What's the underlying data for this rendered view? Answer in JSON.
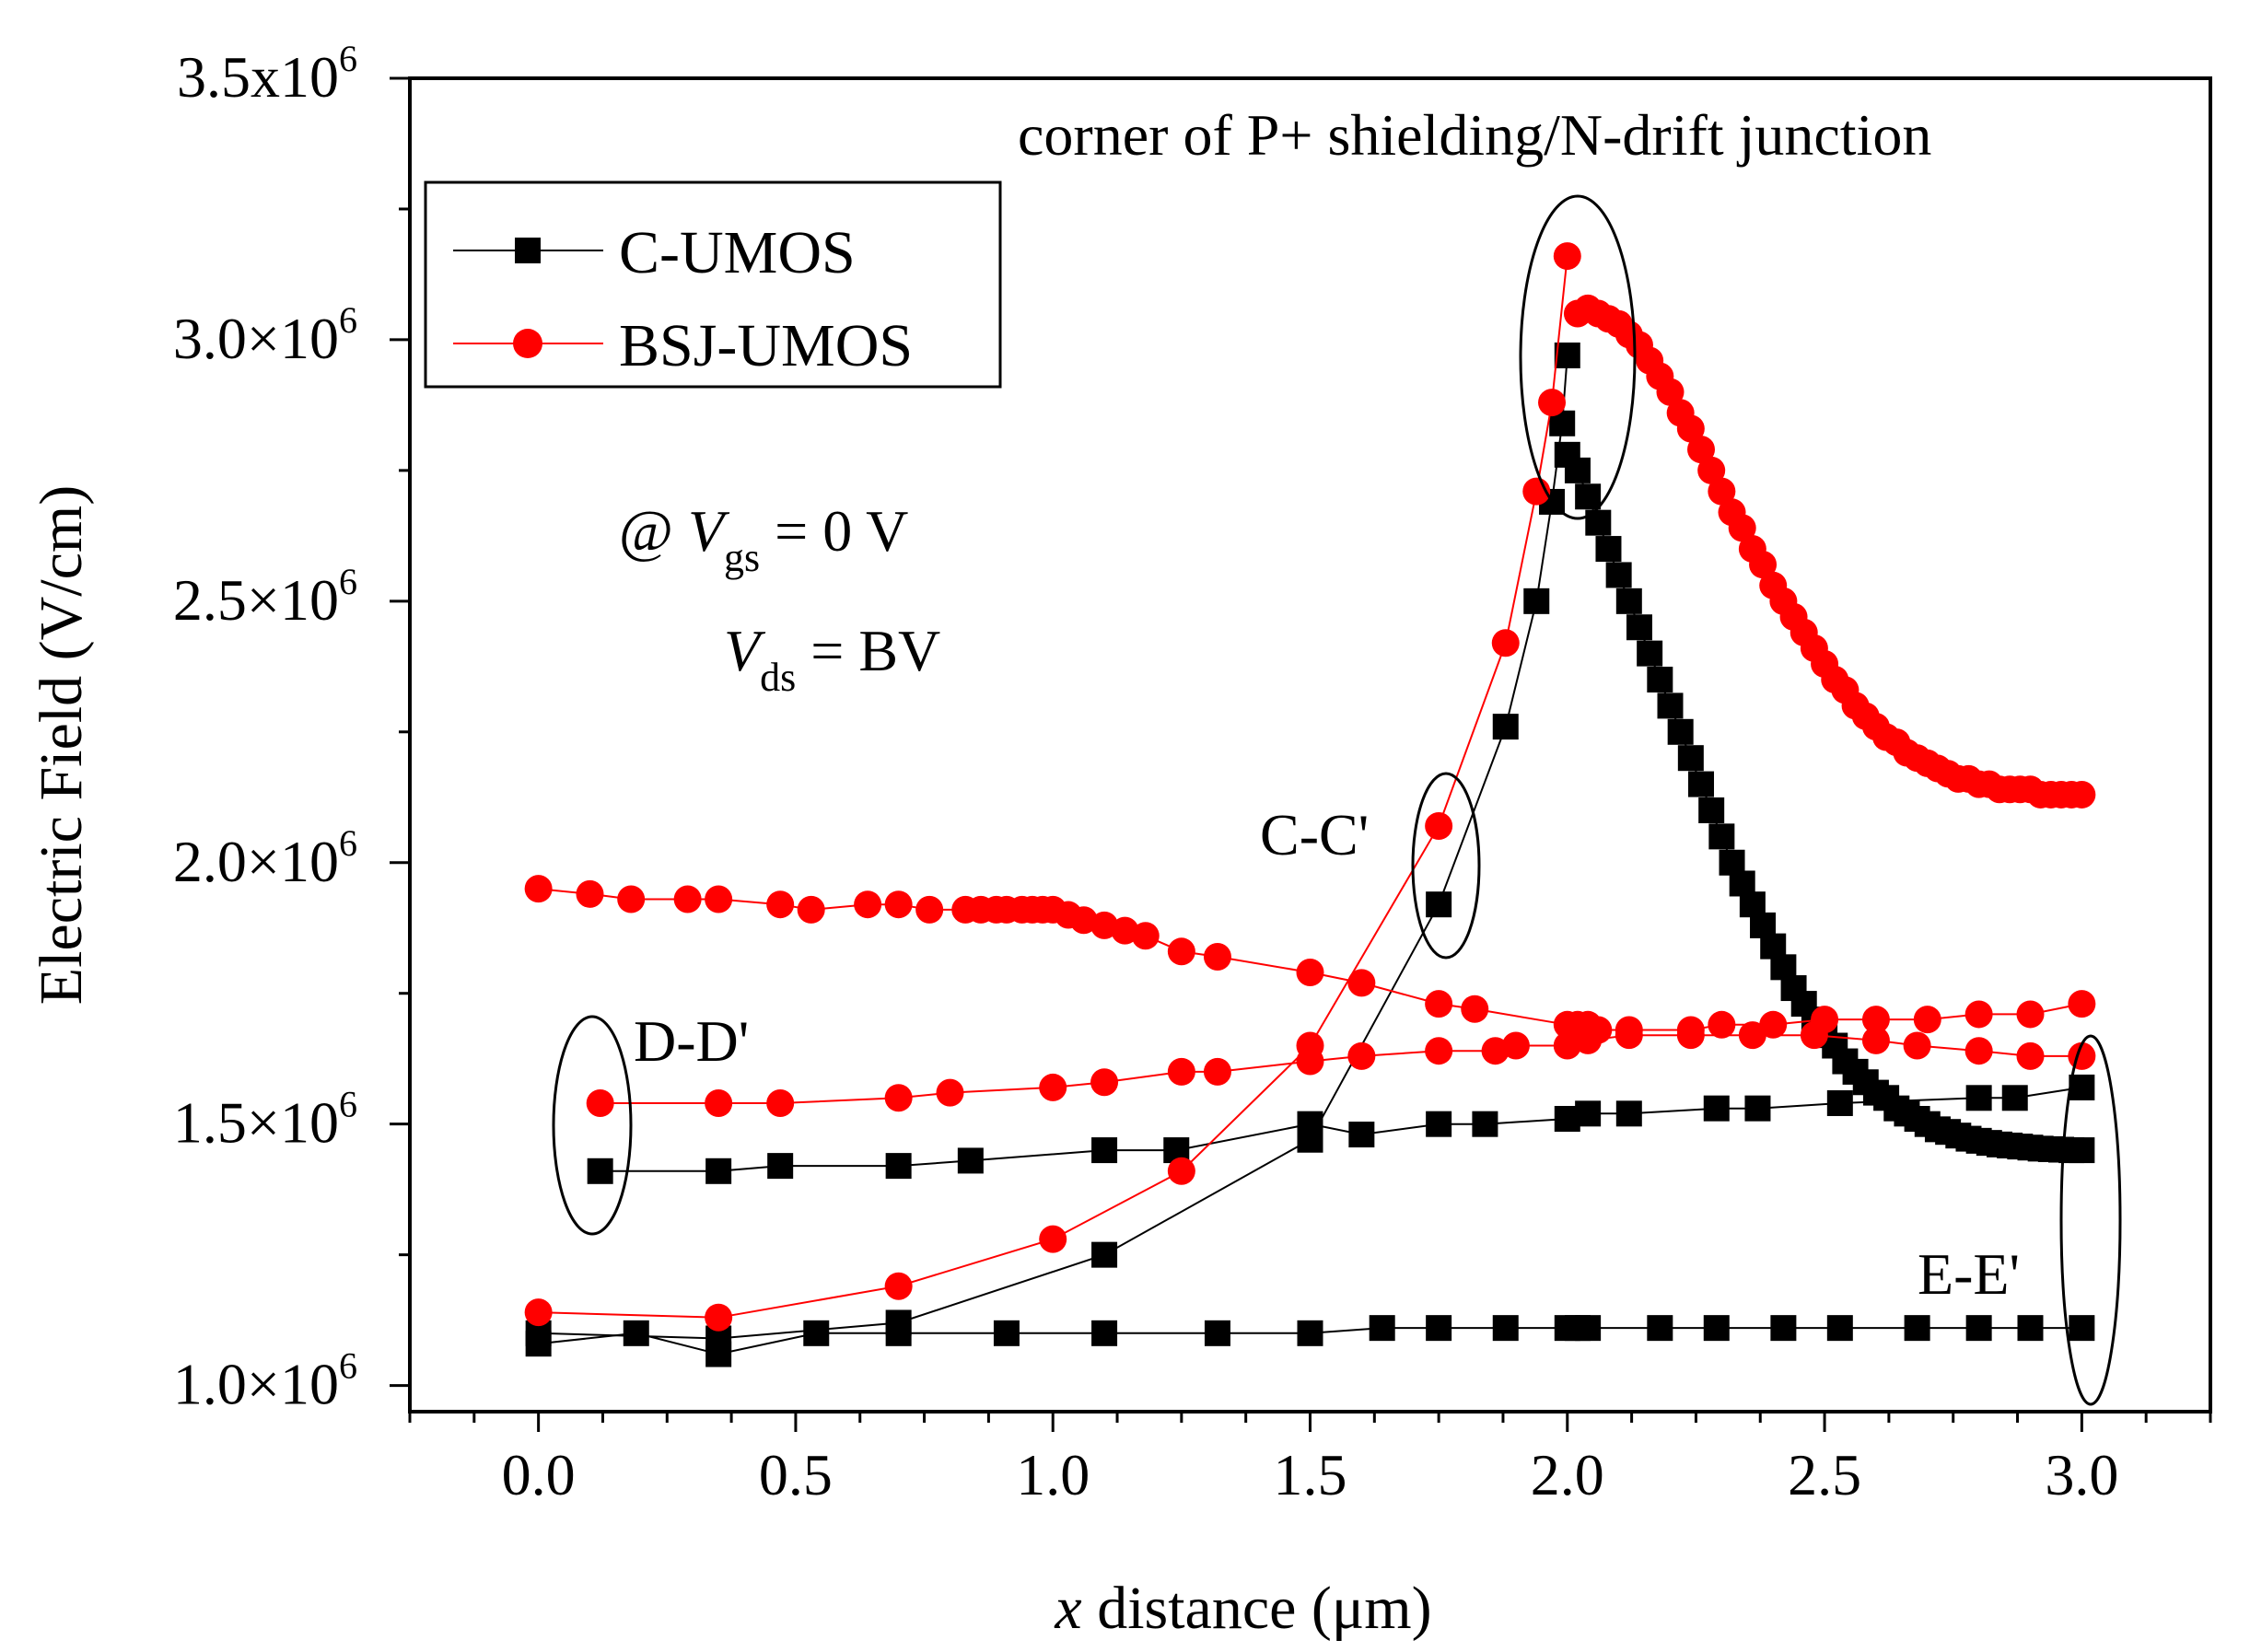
{
  "chart_data": {
    "type": "line",
    "title": "",
    "xlabel_italic": "x",
    "xlabel_rest": " distance (μm)",
    "ylabel": "Electric Field (V/cm)",
    "xlim": [
      -0.25,
      3.25
    ],
    "ylim": [
      950000,
      3500000
    ],
    "x_ticks": [
      {
        "value": 0.0,
        "label": "0.0"
      },
      {
        "value": 0.5,
        "label": "0.5"
      },
      {
        "value": 1.0,
        "label": "1.0"
      },
      {
        "value": 1.5,
        "label": "1.5"
      },
      {
        "value": 2.0,
        "label": "2.0"
      },
      {
        "value": 2.5,
        "label": "2.5"
      },
      {
        "value": 3.0,
        "label": "3.0"
      }
    ],
    "y_ticks": [
      {
        "value": 1000000,
        "mant": "1.0",
        "sep": "×10",
        "exp": "6"
      },
      {
        "value": 1500000,
        "mant": "1.5",
        "sep": "×10",
        "exp": "6"
      },
      {
        "value": 2000000,
        "mant": "2.0",
        "sep": "×10",
        "exp": "6"
      },
      {
        "value": 2500000,
        "mant": "2.5",
        "sep": "×10",
        "exp": "6"
      },
      {
        "value": 3000000,
        "mant": "3.0",
        "sep": "×10",
        "exp": "6"
      },
      {
        "value": 3500000,
        "mant": "3.5",
        "sep": "x10",
        "exp": "6"
      }
    ],
    "legend": {
      "position": "top-left",
      "entries": [
        {
          "name": "C-UMOS",
          "color": "#000000",
          "marker": "square"
        },
        {
          "name": "BSJ-UMOS",
          "color": "#ff0000",
          "marker": "circle"
        }
      ]
    },
    "series": [
      {
        "name": "C-UMOS / C-C'",
        "color": "#000000",
        "marker": "square",
        "x": [
          0.0,
          0.35,
          0.7,
          1.1,
          1.5,
          1.75,
          1.88,
          1.94,
          1.97,
          1.99,
          2.0
        ],
        "y": [
          1100000,
          1090000,
          1120000,
          1250000,
          1470000,
          1920000,
          2260000,
          2500000,
          2690000,
          2840000,
          2970000
        ]
      },
      {
        "name": "C-UMOS / D-D'",
        "color": "#000000",
        "marker": "square",
        "x": [
          0.12,
          0.35,
          0.47,
          0.7,
          0.84,
          1.1,
          1.24,
          1.5,
          1.6,
          1.75,
          1.84,
          2.0,
          2.04,
          2.12,
          2.29,
          2.37,
          2.53,
          2.8,
          2.87,
          3.0
        ],
        "y": [
          1410000,
          1410000,
          1420000,
          1420000,
          1430000,
          1450000,
          1450000,
          1500000,
          1480000,
          1500000,
          1500000,
          1510000,
          1520000,
          1520000,
          1530000,
          1530000,
          1540000,
          1550000,
          1550000,
          1570000
        ]
      },
      {
        "name": "C-UMOS / E-E'",
        "color": "#000000",
        "marker": "square",
        "x": [
          0.0,
          0.19,
          0.35,
          0.54,
          0.7,
          0.91,
          1.1,
          1.32,
          1.5,
          1.64,
          1.75,
          1.88,
          2.0,
          2.02,
          2.04,
          2.18,
          2.29,
          2.42,
          2.53,
          2.68,
          2.8,
          2.9,
          3.0
        ],
        "y": [
          1080000,
          1100000,
          1060000,
          1100000,
          1100000,
          1100000,
          1100000,
          1100000,
          1100000,
          1110000,
          1110000,
          1110000,
          1110000,
          1110000,
          1110000,
          1110000,
          1110000,
          1110000,
          1110000,
          1110000,
          1110000,
          1110000,
          1110000
        ]
      },
      {
        "name": "C-UMOS / decay",
        "color": "#000000",
        "marker": "square",
        "x": [
          2.0,
          2.02,
          2.04,
          2.06,
          2.08,
          2.1,
          2.12,
          2.14,
          2.16,
          2.18,
          2.2,
          2.22,
          2.24,
          2.26,
          2.28,
          2.3,
          2.32,
          2.34,
          2.36,
          2.38,
          2.4,
          2.42,
          2.44,
          2.46,
          2.48,
          2.5,
          2.52,
          2.54,
          2.56,
          2.58,
          2.6,
          2.62,
          2.64,
          2.66,
          2.68,
          2.7,
          2.72,
          2.74,
          2.76,
          2.78,
          2.8,
          2.82,
          2.84,
          2.86,
          2.88,
          2.9,
          2.92,
          2.94,
          2.96,
          2.98,
          3.0
        ],
        "y": [
          2780000,
          2750000,
          2700000,
          2650000,
          2600000,
          2550000,
          2500000,
          2450000,
          2400000,
          2350000,
          2300000,
          2250000,
          2200000,
          2150000,
          2100000,
          2050000,
          2000000,
          1960000,
          1920000,
          1880000,
          1840000,
          1800000,
          1760000,
          1730000,
          1700000,
          1670000,
          1650000,
          1620000,
          1600000,
          1580000,
          1560000,
          1550000,
          1530000,
          1520000,
          1510000,
          1500000,
          1490000,
          1485000,
          1478000,
          1472000,
          1468000,
          1464000,
          1461000,
          1459000,
          1457000,
          1455000,
          1453000,
          1452000,
          1451000,
          1450000,
          1450000
        ]
      },
      {
        "name": "BSJ-UMOS / C-C'",
        "color": "#ff0000",
        "marker": "circle",
        "x": [
          0.0,
          0.35,
          0.7,
          1.0,
          1.25,
          1.5,
          1.75,
          1.88,
          1.94,
          1.97,
          2.0
        ],
        "y": [
          1140000,
          1130000,
          1190000,
          1280000,
          1410000,
          1650000,
          2070000,
          2420000,
          2710000,
          2880000,
          3160000
        ]
      },
      {
        "name": "BSJ-UMOS / D-D'",
        "color": "#ff0000",
        "marker": "circle",
        "x": [
          0.12,
          0.35,
          0.47,
          0.7,
          0.8,
          1.0,
          1.1,
          1.25,
          1.32,
          1.5,
          1.6,
          1.75,
          1.86,
          1.9,
          2.0,
          2.04,
          2.12,
          2.24,
          2.36,
          2.48,
          2.6,
          2.68,
          2.8,
          2.9,
          3.0
        ],
        "y": [
          1540000,
          1540000,
          1540000,
          1550000,
          1560000,
          1570000,
          1580000,
          1600000,
          1600000,
          1620000,
          1630000,
          1640000,
          1640000,
          1650000,
          1650000,
          1660000,
          1670000,
          1670000,
          1670000,
          1670000,
          1660000,
          1650000,
          1640000,
          1630000,
          1630000
        ]
      },
      {
        "name": "BSJ-UMOS / E-E'",
        "color": "#ff0000",
        "marker": "circle",
        "x": [
          0.0,
          0.1,
          0.18,
          0.29,
          0.35,
          0.47,
          0.53,
          0.64,
          0.7,
          0.76,
          0.83,
          0.86,
          0.89,
          0.91,
          0.94,
          0.96,
          0.98,
          1.0,
          1.03,
          1.06,
          1.1,
          1.14,
          1.18,
          1.25,
          1.32,
          1.5,
          1.6,
          1.75,
          1.82,
          2.0,
          2.02,
          2.04,
          2.06,
          2.12,
          2.24,
          2.3,
          2.4,
          2.5,
          2.6,
          2.7,
          2.8,
          2.9,
          3.0
        ],
        "y": [
          1950000,
          1940000,
          1930000,
          1930000,
          1930000,
          1920000,
          1910000,
          1920000,
          1920000,
          1910000,
          1910000,
          1910000,
          1910000,
          1910000,
          1910000,
          1910000,
          1910000,
          1910000,
          1900000,
          1890000,
          1880000,
          1870000,
          1860000,
          1830000,
          1820000,
          1790000,
          1770000,
          1730000,
          1720000,
          1690000,
          1690000,
          1690000,
          1680000,
          1680000,
          1680000,
          1690000,
          1690000,
          1700000,
          1700000,
          1700000,
          1710000,
          1710000,
          1730000
        ]
      },
      {
        "name": "BSJ-UMOS / decay",
        "color": "#ff0000",
        "marker": "circle",
        "x": [
          2.02,
          2.04,
          2.06,
          2.08,
          2.1,
          2.12,
          2.14,
          2.16,
          2.18,
          2.2,
          2.22,
          2.24,
          2.26,
          2.28,
          2.3,
          2.32,
          2.34,
          2.36,
          2.38,
          2.4,
          2.42,
          2.44,
          2.46,
          2.48,
          2.5,
          2.52,
          2.54,
          2.56,
          2.58,
          2.6,
          2.62,
          2.64,
          2.66,
          2.68,
          2.7,
          2.72,
          2.74,
          2.76,
          2.78,
          2.8,
          2.82,
          2.84,
          2.86,
          2.88,
          2.9,
          2.92,
          2.94,
          2.96,
          2.98,
          3.0
        ],
        "y": [
          3050000,
          3060000,
          3050000,
          3040000,
          3030000,
          3010000,
          2990000,
          2960000,
          2930000,
          2900000,
          2860000,
          2830000,
          2790000,
          2750000,
          2710000,
          2670000,
          2640000,
          2600000,
          2570000,
          2530000,
          2500000,
          2470000,
          2440000,
          2410000,
          2380000,
          2350000,
          2330000,
          2300000,
          2280000,
          2260000,
          2240000,
          2230000,
          2210000,
          2200000,
          2190000,
          2180000,
          2170000,
          2160000,
          2160000,
          2150000,
          2150000,
          2140000,
          2140000,
          2140000,
          2140000,
          2130000,
          2130000,
          2130000,
          2130000,
          2130000
        ]
      }
    ],
    "annotations": {
      "corner": "corner of P+ shielding/N-drift junction",
      "cc": "C-C'",
      "dd": "D-D'",
      "ee": "E-E'",
      "cond_at": "@ ",
      "cond_v": "V",
      "cond_gs": "gs",
      "cond_gs_value": " = 0 V",
      "cond_ds": "ds",
      "cond_ds_value": " = BV"
    }
  }
}
